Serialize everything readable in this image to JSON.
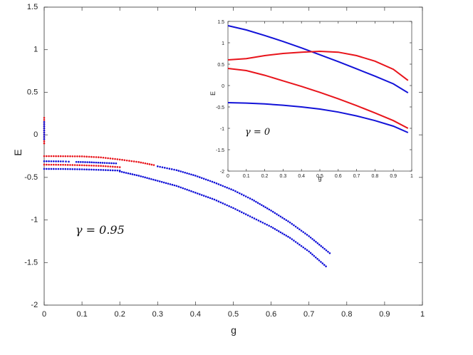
{
  "chart_data": [
    {
      "type": "scatter",
      "xlabel": "g",
      "ylabel": "E",
      "xlim": [
        0,
        1
      ],
      "ylim": [
        -2,
        1.5
      ],
      "xticks": [
        "0",
        "0.1",
        "0.2",
        "0.3",
        "0.4",
        "0.5",
        "0.6",
        "0.7",
        "0.8",
        "0.9",
        "1"
      ],
      "yticks": [
        "-2",
        "-1.5",
        "-1",
        "-0.5",
        "0",
        "0.5",
        "1",
        "1.5"
      ],
      "annotation": "γ = 0.95",
      "colors": {
        "red": "#e8141b",
        "blue": "#1212d8"
      },
      "series": [
        {
          "color": "#e8141b",
          "points": [
            [
              0.0,
              -0.25
            ],
            [
              0.05,
              -0.251
            ],
            [
              0.1,
              -0.253
            ],
            [
              0.15,
              -0.265
            ],
            [
              0.2,
              -0.29
            ],
            [
              0.25,
              -0.32
            ],
            [
              0.29,
              -0.355
            ]
          ]
        },
        {
          "color": "#e8141b",
          "points": [
            [
              0.0,
              -0.35
            ],
            [
              0.05,
              -0.352
            ],
            [
              0.1,
              -0.357
            ],
            [
              0.15,
              -0.365
            ],
            [
              0.2,
              -0.38
            ]
          ]
        },
        {
          "color": "#1212d8",
          "points": [
            [
              0.0,
              -0.31
            ],
            [
              0.05,
              -0.312
            ],
            [
              0.065,
              -0.315
            ]
          ]
        },
        {
          "color": "#1212d8",
          "points": [
            [
              0.085,
              -0.318
            ],
            [
              0.12,
              -0.322
            ],
            [
              0.16,
              -0.33
            ],
            [
              0.19,
              -0.335
            ]
          ]
        },
        {
          "color": "#1212d8",
          "points": [
            [
              0.0,
              -0.4
            ],
            [
              0.05,
              -0.401
            ],
            [
              0.1,
              -0.405
            ],
            [
              0.15,
              -0.412
            ],
            [
              0.2,
              -0.42
            ]
          ]
        },
        {
          "color": "#1212d8",
          "points": [
            [
              0.3,
              -0.37
            ],
            [
              0.35,
              -0.415
            ],
            [
              0.4,
              -0.48
            ],
            [
              0.45,
              -0.56
            ],
            [
              0.5,
              -0.65
            ],
            [
              0.55,
              -0.76
            ],
            [
              0.6,
              -0.89
            ],
            [
              0.65,
              -1.03
            ],
            [
              0.7,
              -1.19
            ],
            [
              0.755,
              -1.39
            ]
          ]
        },
        {
          "color": "#1212d8",
          "points": [
            [
              0.2,
              -0.43
            ],
            [
              0.25,
              -0.48
            ],
            [
              0.3,
              -0.54
            ],
            [
              0.35,
              -0.6
            ],
            [
              0.4,
              -0.68
            ],
            [
              0.45,
              -0.76
            ],
            [
              0.5,
              -0.86
            ],
            [
              0.55,
              -0.97
            ],
            [
              0.6,
              -1.08
            ],
            [
              0.65,
              -1.21
            ],
            [
              0.7,
              -1.37
            ],
            [
              0.745,
              -1.545
            ]
          ]
        },
        {
          "color": "#e8141b",
          "points": [
            [
              0.0,
              0.2
            ],
            [
              0.0,
              0.1
            ],
            [
              0.0,
              0.0
            ],
            [
              0.0,
              -0.1
            ]
          ]
        },
        {
          "color": "#1212d8",
          "points": [
            [
              0.0,
              0.15
            ],
            [
              0.0,
              0.05
            ],
            [
              0.0,
              -0.05
            ]
          ]
        }
      ]
    },
    {
      "type": "line",
      "xlabel": "g",
      "ylabel": "E",
      "xlim": [
        0,
        1
      ],
      "ylim": [
        -2,
        1.5
      ],
      "xticks": [
        "0",
        "0.1",
        "0.2",
        "0.3",
        "0.4",
        "0.5",
        "0.6",
        "0.7",
        "0.8",
        "0.9",
        "1"
      ],
      "yticks": [
        "-2",
        "-1.5",
        "-1",
        "-0.5",
        "0",
        "0.5",
        "1",
        "1.5"
      ],
      "annotation": "γ = 0",
      "series": [
        {
          "color": "#1212d8",
          "points": [
            [
              0,
              1.4
            ],
            [
              0.1,
              1.3
            ],
            [
              0.2,
              1.17
            ],
            [
              0.3,
              1.03
            ],
            [
              0.4,
              0.88
            ],
            [
              0.5,
              0.72
            ],
            [
              0.6,
              0.56
            ],
            [
              0.7,
              0.39
            ],
            [
              0.8,
              0.22
            ],
            [
              0.9,
              0.04
            ],
            [
              0.98,
              -0.17
            ]
          ]
        },
        {
          "color": "#e8141b",
          "points": [
            [
              0,
              0.6
            ],
            [
              0.1,
              0.63
            ],
            [
              0.2,
              0.7
            ],
            [
              0.3,
              0.75
            ],
            [
              0.4,
              0.78
            ],
            [
              0.5,
              0.8
            ],
            [
              0.6,
              0.78
            ],
            [
              0.7,
              0.7
            ],
            [
              0.8,
              0.57
            ],
            [
              0.9,
              0.38
            ],
            [
              0.98,
              0.12
            ]
          ]
        },
        {
          "color": "#e8141b",
          "points": [
            [
              0,
              0.4
            ],
            [
              0.1,
              0.35
            ],
            [
              0.2,
              0.24
            ],
            [
              0.3,
              0.11
            ],
            [
              0.4,
              -0.02
            ],
            [
              0.5,
              -0.16
            ],
            [
              0.6,
              -0.31
            ],
            [
              0.7,
              -0.47
            ],
            [
              0.8,
              -0.64
            ],
            [
              0.9,
              -0.82
            ],
            [
              0.98,
              -1.0
            ]
          ]
        },
        {
          "color": "#1212d8",
          "points": [
            [
              0,
              -0.4
            ],
            [
              0.1,
              -0.41
            ],
            [
              0.2,
              -0.43
            ],
            [
              0.3,
              -0.46
            ],
            [
              0.4,
              -0.5
            ],
            [
              0.5,
              -0.55
            ],
            [
              0.6,
              -0.62
            ],
            [
              0.7,
              -0.71
            ],
            [
              0.8,
              -0.82
            ],
            [
              0.9,
              -0.95
            ],
            [
              0.98,
              -1.1
            ]
          ]
        }
      ]
    }
  ]
}
